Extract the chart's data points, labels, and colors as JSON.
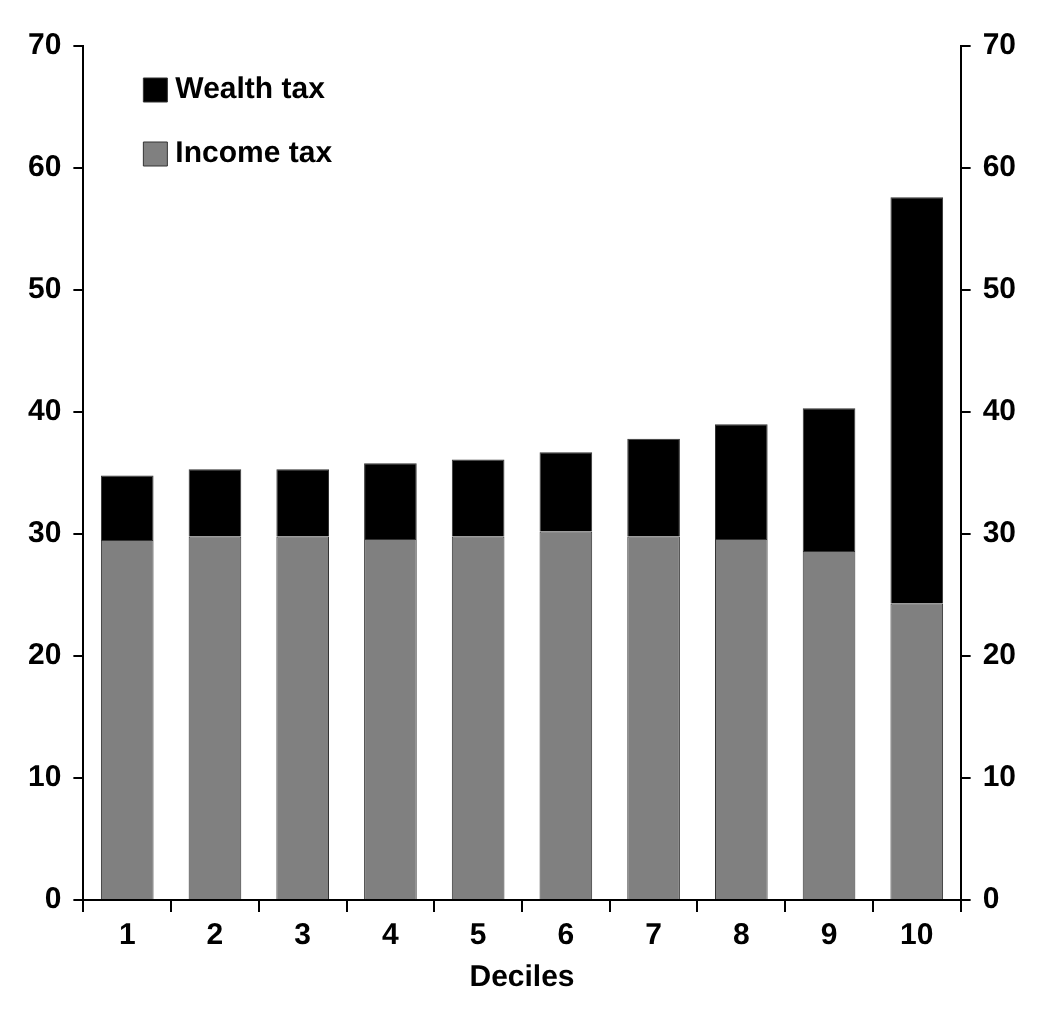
{
  "chart_data": {
    "type": "bar",
    "xlabel": "Deciles",
    "categories": [
      "1",
      "2",
      "3",
      "4",
      "5",
      "6",
      "7",
      "8",
      "9",
      "10"
    ],
    "stacked": true,
    "legend": "top left",
    "grid": false,
    "ylim": [
      0,
      70
    ],
    "yticks": [
      0,
      10,
      20,
      30,
      40,
      50,
      60,
      70
    ],
    "y2lim": [
      0,
      70
    ],
    "y2ticks": [
      0,
      10,
      20,
      30,
      40,
      50,
      60,
      70
    ],
    "series": [
      {
        "name": "Income tax",
        "color": "#808080",
        "values": [
          29.5,
          29.8,
          29.8,
          29.6,
          29.8,
          30.2,
          29.8,
          29.6,
          28.6,
          24.3
        ]
      },
      {
        "name": "Wealth tax",
        "color": "#000000",
        "values": [
          5.3,
          5.5,
          5.5,
          6.2,
          6.3,
          6.5,
          8.0,
          9.4,
          11.7,
          33.3
        ]
      }
    ]
  }
}
